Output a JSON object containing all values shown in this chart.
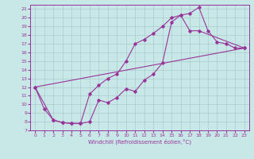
{
  "xlabel": "Windchill (Refroidissement éolien,°C)",
  "bg_color": "#c8e8e8",
  "line_color": "#993399",
  "grid_color": "#aacccc",
  "xlim": [
    -0.5,
    23.5
  ],
  "ylim": [
    7,
    21.5
  ],
  "xticks": [
    0,
    1,
    2,
    3,
    4,
    5,
    6,
    7,
    8,
    9,
    10,
    11,
    12,
    13,
    14,
    15,
    16,
    17,
    18,
    19,
    20,
    21,
    22,
    23
  ],
  "yticks": [
    7,
    8,
    9,
    10,
    11,
    12,
    13,
    14,
    15,
    16,
    17,
    18,
    19,
    20,
    21
  ],
  "line1_x": [
    0,
    1,
    2,
    3,
    4,
    5,
    6,
    7,
    8,
    9,
    10,
    11,
    12,
    13,
    14,
    15,
    16,
    17,
    18,
    19,
    20,
    21,
    22,
    23
  ],
  "line1_y": [
    12.0,
    9.5,
    8.2,
    7.9,
    7.8,
    7.8,
    8.0,
    10.5,
    10.2,
    10.8,
    11.8,
    11.5,
    12.8,
    13.5,
    14.8,
    19.5,
    20.3,
    20.5,
    21.2,
    18.5,
    17.2,
    17.0,
    16.5,
    16.5
  ],
  "line2_x": [
    0,
    2,
    3,
    4,
    5,
    6,
    7,
    8,
    9,
    10,
    11,
    12,
    13,
    14,
    15,
    16,
    17,
    18,
    23
  ],
  "line2_y": [
    12.0,
    8.2,
    7.9,
    7.8,
    7.8,
    11.2,
    12.2,
    13.0,
    13.5,
    15.0,
    17.0,
    17.5,
    18.2,
    19.0,
    20.0,
    20.3,
    18.5,
    18.5,
    16.5
  ],
  "line3_x": [
    0,
    23
  ],
  "line3_y": [
    12.0,
    16.5
  ]
}
